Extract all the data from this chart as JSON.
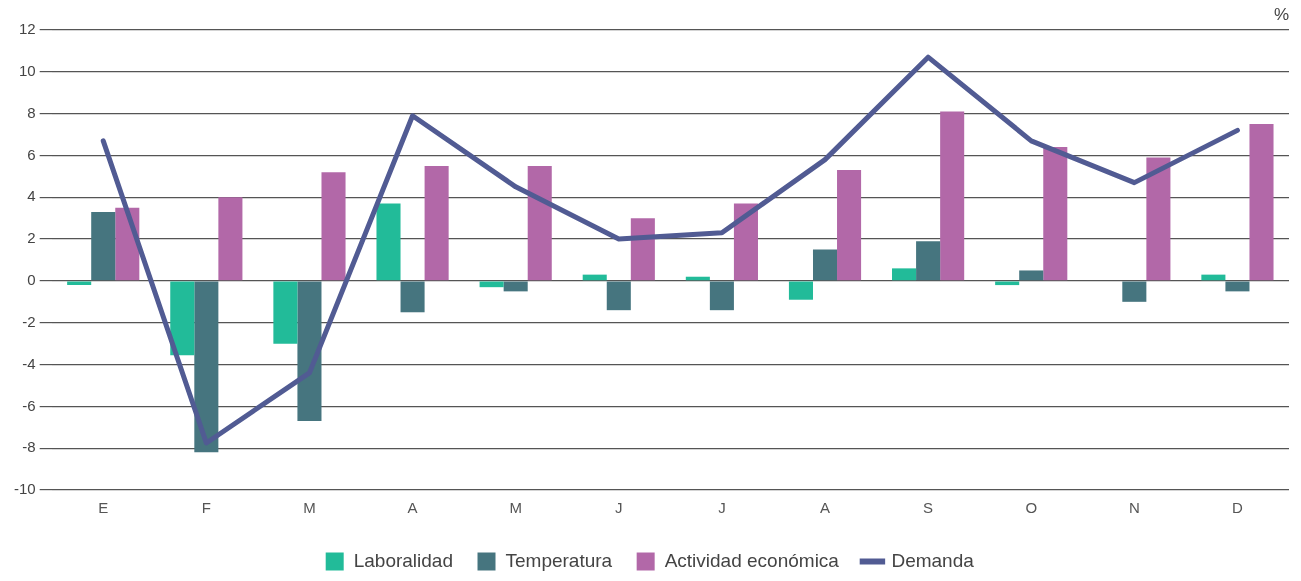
{
  "chart_data": {
    "type": "bar",
    "categories": [
      "E",
      "F",
      "M",
      "A",
      "M",
      "J",
      "J",
      "A",
      "S",
      "O",
      "N",
      "D"
    ],
    "series": [
      {
        "name": "Laboralidad",
        "color": "#22bb99",
        "values": [
          -0.2,
          -3.55,
          -3.0,
          3.7,
          -0.3,
          0.3,
          0.2,
          -0.9,
          0.6,
          -0.2,
          0,
          0.3
        ]
      },
      {
        "name": "Temperatura",
        "color": "#46757f",
        "values": [
          3.3,
          -8.2,
          -6.7,
          -1.5,
          -0.5,
          -1.4,
          -1.4,
          1.5,
          1.9,
          0.5,
          -1.0,
          -0.5
        ]
      },
      {
        "name": "Actividad económica",
        "color": "#b268a8",
        "values": [
          3.5,
          4.0,
          5.2,
          5.5,
          5.5,
          3.0,
          3.7,
          5.3,
          8.1,
          6.4,
          5.9,
          7.5
        ]
      },
      {
        "name": "Demanda",
        "type": "line",
        "color": "#515b93",
        "values": [
          6.7,
          -7.75,
          -4.4,
          7.9,
          4.5,
          2.0,
          2.3,
          5.8,
          10.7,
          6.7,
          4.7,
          7.2
        ]
      }
    ],
    "ylim": [
      -10,
      12
    ],
    "yticks": [
      -10,
      -8,
      -6,
      -4,
      -2,
      0,
      2,
      4,
      6,
      8,
      10,
      12
    ],
    "grid": "y",
    "legend": "bottom",
    "marker": "none",
    "annotations": [
      "%"
    ]
  }
}
